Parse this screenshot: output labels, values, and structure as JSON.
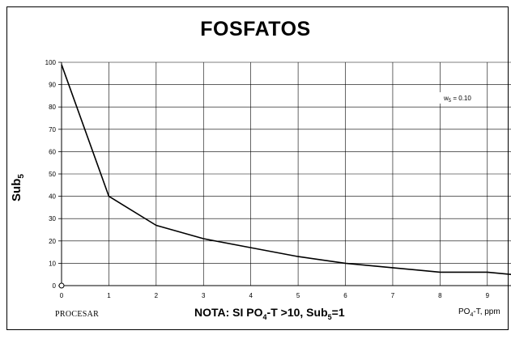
{
  "chart_data": {
    "type": "line",
    "title": "FOSFATOS",
    "ylabel": {
      "main": "Sub",
      "sub": "5"
    },
    "xlabel": {
      "pre": "PO",
      "sub": "4",
      "post": "-T, ppm"
    },
    "ylim": [
      0,
      100
    ],
    "yticks": [
      "0",
      "10",
      "20",
      "30",
      "40",
      "50",
      "60",
      "70",
      "80",
      "90",
      "100"
    ],
    "xlim": [
      0,
      9.5
    ],
    "xticks": [
      "0",
      "1",
      "2",
      "3",
      "4",
      "5",
      "6",
      "7",
      "8",
      "9"
    ],
    "grid": true,
    "legend_placement": "top-right",
    "series": [
      {
        "name": "w5 = 0.10",
        "legend": {
          "pre": "w",
          "sub": "5",
          "post": " = 0.10"
        },
        "color": "#000000",
        "x": [
          0,
          1,
          2,
          3,
          4,
          5,
          6,
          7,
          8,
          9,
          9.5
        ],
        "y": [
          99,
          40,
          27,
          21,
          17,
          13,
          10,
          8,
          6,
          6,
          5
        ]
      }
    ],
    "marker": {
      "x": 0,
      "y": 0
    }
  },
  "controls": {
    "process_label": "PROCESAR"
  },
  "note": {
    "pre": "NOTA: SI PO",
    "sub1": "4",
    "mid": "-T >10, Sub",
    "sub2": "5",
    "post": "=1"
  }
}
